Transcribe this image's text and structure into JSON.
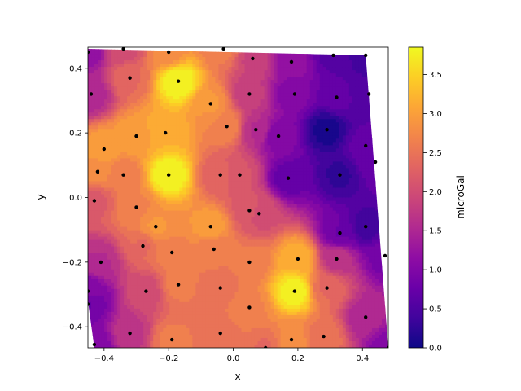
{
  "chart_data": {
    "type": "heatmap",
    "subtype": "filled-contour-with-scatter",
    "title": "",
    "xlabel": "x",
    "ylabel": "y",
    "xlim": [
      -0.45,
      0.48
    ],
    "ylim": [
      -0.465,
      0.465
    ],
    "xticks": [
      -0.4,
      -0.2,
      0.0,
      0.2,
      0.4
    ],
    "xtick_labels": [
      "−0.4",
      "−0.2",
      "0.0",
      "0.2",
      "0.4"
    ],
    "yticks": [
      -0.4,
      -0.2,
      0.0,
      0.2,
      0.4
    ],
    "ytick_labels": [
      "−0.4",
      "−0.2",
      "0.0",
      "0.2",
      "0.4"
    ],
    "grid": false,
    "colormap": "plasma",
    "colorbar": {
      "label": "microGal",
      "range": [
        0.0,
        3.85
      ],
      "ticks": [
        0.0,
        0.5,
        1.0,
        1.5,
        2.0,
        2.5,
        3.0,
        3.5
      ],
      "tick_labels": [
        "0.0",
        "0.5",
        "1.0",
        "1.5",
        "2.0",
        "2.5",
        "3.0",
        "3.5"
      ]
    },
    "hull": [
      [
        -0.45,
        0.46
      ],
      [
        0.41,
        0.44
      ],
      [
        0.48,
        -0.465
      ],
      [
        -0.43,
        -0.465
      ],
      [
        -0.45,
        -0.32
      ]
    ],
    "points": [
      {
        "x": -0.45,
        "y": 0.45,
        "v": 1.2
      },
      {
        "x": -0.34,
        "y": 0.46,
        "v": 2.0
      },
      {
        "x": -0.2,
        "y": 0.45,
        "v": 2.8
      },
      {
        "x": -0.03,
        "y": 0.46,
        "v": 2.6
      },
      {
        "x": 0.06,
        "y": 0.43,
        "v": 1.9
      },
      {
        "x": 0.18,
        "y": 0.42,
        "v": 1.2
      },
      {
        "x": 0.31,
        "y": 0.44,
        "v": 0.6
      },
      {
        "x": 0.41,
        "y": 0.44,
        "v": 0.4
      },
      {
        "x": -0.44,
        "y": 0.32,
        "v": 1.5
      },
      {
        "x": -0.32,
        "y": 0.37,
        "v": 2.4
      },
      {
        "x": -0.17,
        "y": 0.36,
        "v": 3.85
      },
      {
        "x": -0.07,
        "y": 0.29,
        "v": 2.9
      },
      {
        "x": 0.05,
        "y": 0.32,
        "v": 1.8
      },
      {
        "x": 0.19,
        "y": 0.32,
        "v": 1.0
      },
      {
        "x": 0.32,
        "y": 0.31,
        "v": 0.7
      },
      {
        "x": 0.42,
        "y": 0.32,
        "v": 0.5
      },
      {
        "x": -0.4,
        "y": 0.15,
        "v": 3.0
      },
      {
        "x": -0.3,
        "y": 0.19,
        "v": 3.0
      },
      {
        "x": -0.21,
        "y": 0.2,
        "v": 3.2
      },
      {
        "x": -0.02,
        "y": 0.22,
        "v": 2.7
      },
      {
        "x": 0.07,
        "y": 0.21,
        "v": 1.6
      },
      {
        "x": 0.14,
        "y": 0.19,
        "v": 1.0
      },
      {
        "x": 0.29,
        "y": 0.21,
        "v": 0.1
      },
      {
        "x": 0.41,
        "y": 0.16,
        "v": 0.7
      },
      {
        "x": 0.44,
        "y": 0.11,
        "v": 0.8
      },
      {
        "x": -0.42,
        "y": 0.08,
        "v": 2.8
      },
      {
        "x": -0.34,
        "y": 0.07,
        "v": 2.6
      },
      {
        "x": -0.2,
        "y": 0.07,
        "v": 3.85
      },
      {
        "x": -0.04,
        "y": 0.07,
        "v": 2.3
      },
      {
        "x": 0.02,
        "y": 0.07,
        "v": 2.1
      },
      {
        "x": 0.17,
        "y": 0.06,
        "v": 0.7
      },
      {
        "x": 0.33,
        "y": 0.07,
        "v": 0.3
      },
      {
        "x": -0.43,
        "y": -0.01,
        "v": 2.2
      },
      {
        "x": -0.3,
        "y": -0.03,
        "v": 2.7
      },
      {
        "x": 0.05,
        "y": -0.04,
        "v": 2.2
      },
      {
        "x": 0.08,
        "y": -0.05,
        "v": 2.0
      },
      {
        "x": -0.24,
        "y": -0.09,
        "v": 2.9
      },
      {
        "x": -0.07,
        "y": -0.09,
        "v": 3.0
      },
      {
        "x": 0.33,
        "y": -0.11,
        "v": 0.8
      },
      {
        "x": 0.41,
        "y": -0.09,
        "v": 0.4
      },
      {
        "x": -0.28,
        "y": -0.15,
        "v": 2.4
      },
      {
        "x": -0.06,
        "y": -0.16,
        "v": 2.6
      },
      {
        "x": -0.19,
        "y": -0.17,
        "v": 2.7
      },
      {
        "x": 0.47,
        "y": -0.18,
        "v": 0.9
      },
      {
        "x": -0.41,
        "y": -0.2,
        "v": 1.6
      },
      {
        "x": 0.05,
        "y": -0.2,
        "v": 2.6
      },
      {
        "x": 0.2,
        "y": -0.19,
        "v": 3.2
      },
      {
        "x": 0.32,
        "y": -0.19,
        "v": 1.7
      },
      {
        "x": -0.45,
        "y": -0.29,
        "v": 1.0
      },
      {
        "x": -0.27,
        "y": -0.29,
        "v": 2.0
      },
      {
        "x": -0.17,
        "y": -0.27,
        "v": 2.6
      },
      {
        "x": -0.04,
        "y": -0.28,
        "v": 2.5
      },
      {
        "x": 0.19,
        "y": -0.29,
        "v": 3.8
      },
      {
        "x": 0.29,
        "y": -0.28,
        "v": 2.4
      },
      {
        "x": -0.45,
        "y": -0.33,
        "v": 0.8
      },
      {
        "x": 0.05,
        "y": -0.34,
        "v": 2.7
      },
      {
        "x": 0.41,
        "y": -0.37,
        "v": 1.5
      },
      {
        "x": -0.32,
        "y": -0.42,
        "v": 1.7
      },
      {
        "x": -0.19,
        "y": -0.44,
        "v": 2.6
      },
      {
        "x": -0.04,
        "y": -0.42,
        "v": 2.5
      },
      {
        "x": 0.18,
        "y": -0.44,
        "v": 2.8
      },
      {
        "x": 0.28,
        "y": -0.43,
        "v": 2.5
      },
      {
        "x": -0.43,
        "y": -0.455,
        "v": 1.0
      },
      {
        "x": 0.1,
        "y": -0.465,
        "v": 2.4
      },
      {
        "x": 0.48,
        "y": -0.465,
        "v": 1.0
      }
    ]
  }
}
